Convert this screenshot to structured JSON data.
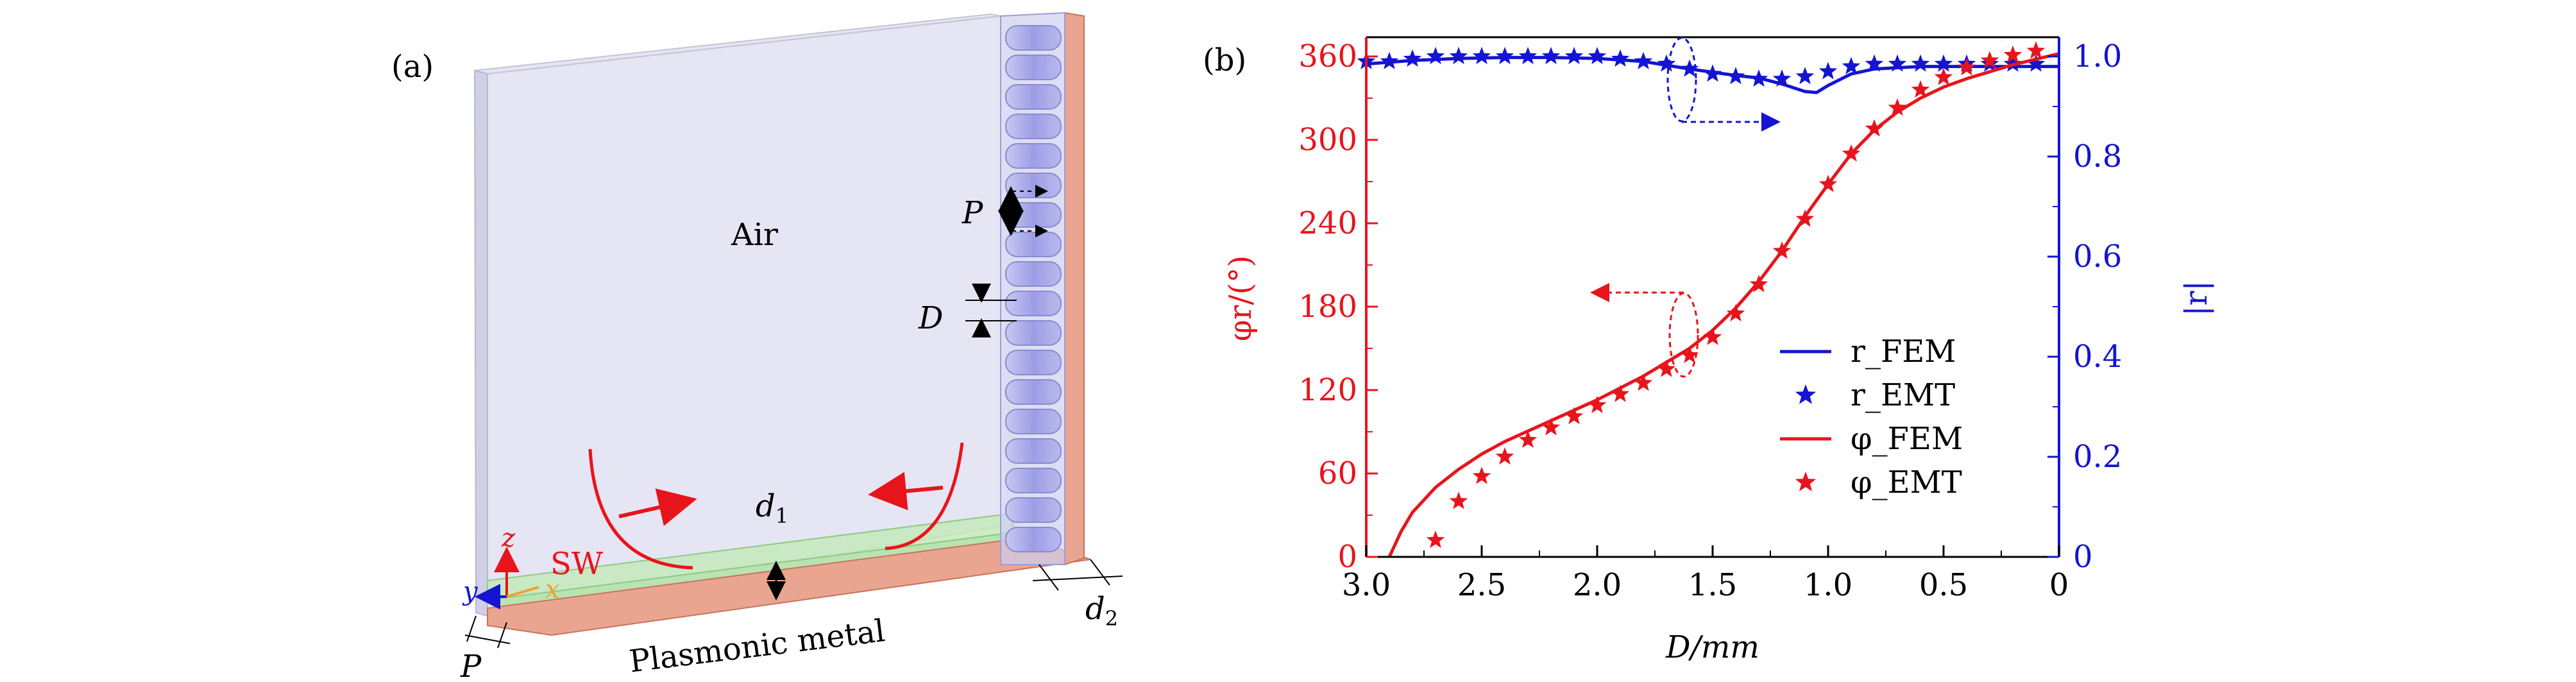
{
  "panel_a": {
    "label": "(a)",
    "air_label": "Air",
    "sw_label": "SW",
    "d1_label": "d",
    "d1_sub": "1",
    "d2_label": "d",
    "d2_sub": "2",
    "p_label_top": "P",
    "p_label_bottom": "P",
    "d_label": "D",
    "metal_label": "Plasmonic metal",
    "axis_x": "x",
    "axis_y": "y",
    "axis_z": "z",
    "colors": {
      "air": "#dcdcef",
      "strip": "#b9e3b0",
      "metal": "#e9a58f",
      "holes": "#a6a6e8",
      "arrows": "#e8141c"
    }
  },
  "chart_data": {
    "type": "line",
    "panel_label": "(b)",
    "xlabel": "D/mm",
    "ylabel_left": "φr/(°)",
    "ylabel_right": "|r|",
    "x_ticks": [
      "3.0",
      "2.5",
      "2.0",
      "1.5",
      "1.0",
      "0.5",
      "0"
    ],
    "y_left_ticks": [
      "0",
      "60",
      "120",
      "180",
      "240",
      "300",
      "360"
    ],
    "y_right_ticks": [
      "0",
      "0.2",
      "0.4",
      "0.6",
      "0.8",
      "1.0"
    ],
    "xlim": [
      3.0,
      0
    ],
    "ylim_left": [
      0,
      360
    ],
    "ylim_right": [
      0,
      1.0
    ],
    "legend_position": "lower-right",
    "colors": {
      "phase": "#e8141c",
      "magnitude": "#1414d2"
    },
    "series": [
      {
        "name": "r_FEM",
        "axis": "right",
        "style": "line",
        "x": [
          3.0,
          2.8,
          2.6,
          2.4,
          2.2,
          2.0,
          1.8,
          1.6,
          1.4,
          1.3,
          1.2,
          1.1,
          1.05,
          1.0,
          0.9,
          0.8,
          0.6,
          0.4,
          0.2,
          0
        ],
        "y": [
          0.985,
          0.992,
          0.996,
          0.998,
          0.998,
          0.996,
          0.99,
          0.975,
          0.962,
          0.957,
          0.945,
          0.93,
          0.928,
          0.942,
          0.965,
          0.975,
          0.98,
          0.98,
          0.98,
          0.98
        ]
      },
      {
        "name": "r_EMT",
        "axis": "right",
        "style": "stars",
        "x": [
          3.0,
          2.9,
          2.8,
          2.7,
          2.6,
          2.5,
          2.4,
          2.3,
          2.2,
          2.1,
          2.0,
          1.9,
          1.8,
          1.7,
          1.6,
          1.5,
          1.4,
          1.3,
          1.2,
          1.1,
          1.0,
          0.9,
          0.8,
          0.7,
          0.6,
          0.5,
          0.4,
          0.3,
          0.2,
          0.1
        ],
        "y": [
          0.99,
          0.99,
          0.995,
          1.0,
          1.0,
          1.0,
          1.0,
          1.0,
          1.0,
          1.0,
          1.0,
          0.995,
          0.99,
          0.985,
          0.975,
          0.965,
          0.96,
          0.955,
          0.955,
          0.96,
          0.97,
          0.98,
          0.985,
          0.985,
          0.985,
          0.985,
          0.985,
          0.985,
          0.985,
          0.985
        ]
      },
      {
        "name": "φ_FEM",
        "axis": "left",
        "style": "line",
        "x": [
          2.9,
          2.85,
          2.8,
          2.7,
          2.6,
          2.5,
          2.4,
          2.2,
          2.0,
          1.8,
          1.6,
          1.5,
          1.4,
          1.3,
          1.2,
          1.1,
          1.0,
          0.9,
          0.8,
          0.7,
          0.6,
          0.5,
          0.4,
          0.3,
          0.2,
          0.1,
          0
        ],
        "y": [
          0,
          18,
          32,
          50,
          63,
          74,
          83,
          98,
          113,
          130,
          150,
          163,
          179,
          198,
          220,
          245,
          268,
          290,
          307,
          320,
          330,
          338,
          344,
          349,
          354,
          358,
          362
        ]
      },
      {
        "name": "φ_EMT",
        "axis": "left",
        "style": "stars",
        "x": [
          2.7,
          2.6,
          2.5,
          2.4,
          2.3,
          2.2,
          2.1,
          2.0,
          1.9,
          1.8,
          1.7,
          1.6,
          1.5,
          1.4,
          1.3,
          1.2,
          1.1,
          1.0,
          0.9,
          0.8,
          0.7,
          0.6,
          0.5,
          0.4,
          0.3,
          0.2,
          0.1
        ],
        "y": [
          12,
          40,
          58,
          72,
          84,
          93,
          101,
          109,
          117,
          125,
          135,
          145,
          158,
          175,
          196,
          220,
          243,
          268,
          290,
          308,
          323,
          336,
          345,
          352,
          357,
          361,
          364
        ]
      }
    ]
  }
}
